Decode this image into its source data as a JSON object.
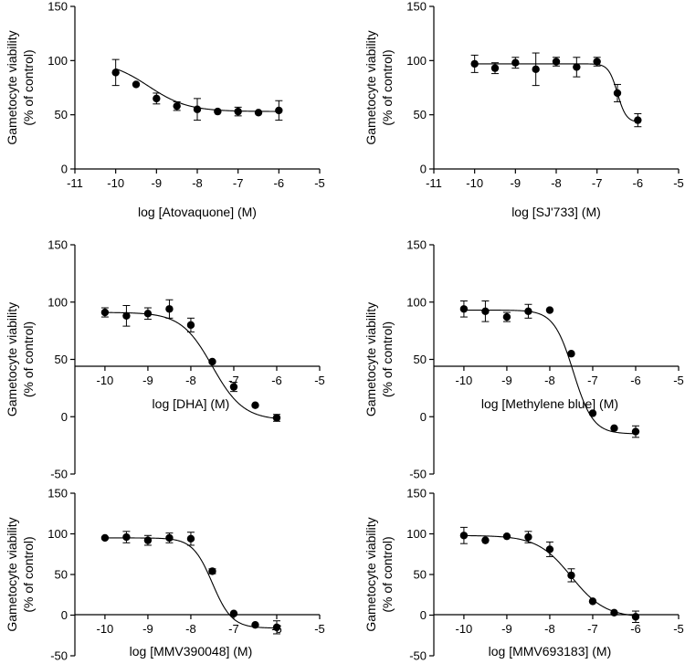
{
  "chart_data": [
    {
      "type": "scatter",
      "xlabel": "log [Atovaquone] (M)",
      "ylabel": [
        "Gametocyte viability",
        "(% of control)"
      ],
      "xlim": [
        -11,
        -5
      ],
      "ylim": [
        0,
        150
      ],
      "xticks": [
        "-11",
        "-10",
        "-9",
        "-8",
        "-7",
        "-6",
        "-5"
      ],
      "yticks": [
        "0",
        "50",
        "100",
        "150"
      ],
      "points": [
        {
          "x": -10,
          "y": 89,
          "err": 12
        },
        {
          "x": -9.5,
          "y": 78,
          "err": 0
        },
        {
          "x": -9,
          "y": 65,
          "err": 5
        },
        {
          "x": -8.5,
          "y": 58,
          "err": 4
        },
        {
          "x": -8,
          "y": 55,
          "err": 10
        },
        {
          "x": -7.5,
          "y": 53,
          "err": 0
        },
        {
          "x": -7,
          "y": 53,
          "err": 4
        },
        {
          "x": -6.5,
          "y": 52,
          "err": 0
        },
        {
          "x": -6,
          "y": 54,
          "err": 9
        }
      ],
      "fit": {
        "bottom": 53,
        "top": 100,
        "logEC50": -9.2,
        "hill": 0.9
      }
    },
    {
      "type": "scatter",
      "xlabel": "log [SJ'733] (M)",
      "ylabel": [
        "Gametocyte viability",
        "(% of control)"
      ],
      "xlim": [
        -11,
        -5
      ],
      "ylim": [
        0,
        150
      ],
      "xticks": [
        "-11",
        "-10",
        "-9",
        "-8",
        "-7",
        "-6",
        "-5"
      ],
      "yticks": [
        "0",
        "50",
        "100",
        "150"
      ],
      "points": [
        {
          "x": -10,
          "y": 97,
          "err": 8
        },
        {
          "x": -9.5,
          "y": 93,
          "err": 5
        },
        {
          "x": -9,
          "y": 98,
          "err": 5
        },
        {
          "x": -8.5,
          "y": 92,
          "err": 15
        },
        {
          "x": -8,
          "y": 99,
          "err": 4
        },
        {
          "x": -7.5,
          "y": 94,
          "err": 9
        },
        {
          "x": -7,
          "y": 99,
          "err": 4
        },
        {
          "x": -6.5,
          "y": 70,
          "err": 8
        },
        {
          "x": -6,
          "y": 45,
          "err": 6
        }
      ],
      "fit": {
        "bottom": 43,
        "top": 97,
        "logEC50": -6.5,
        "hill": 4
      }
    },
    {
      "type": "scatter",
      "xlabel": "log [DHA] (M)",
      "ylabel": [
        "Gametocyte viability",
        "(% of control)"
      ],
      "xlim": [
        -10.7,
        -5
      ],
      "ylim": [
        -50,
        150
      ],
      "xticks": [
        "-10",
        "-9",
        "-8",
        "-7",
        "-6",
        "-5"
      ],
      "yticks": [
        "-50",
        "0",
        "50",
        "100",
        "150"
      ],
      "points": [
        {
          "x": -10,
          "y": 91,
          "err": 4
        },
        {
          "x": -9.5,
          "y": 88,
          "err": 9
        },
        {
          "x": -9,
          "y": 90,
          "err": 5
        },
        {
          "x": -8.5,
          "y": 94,
          "err": 8
        },
        {
          "x": -8,
          "y": 80,
          "err": 6
        },
        {
          "x": -7.5,
          "y": 48,
          "err": 0
        },
        {
          "x": -7,
          "y": 26,
          "err": 4
        },
        {
          "x": -6.5,
          "y": 10,
          "err": 0
        },
        {
          "x": -6,
          "y": -1,
          "err": 3
        }
      ],
      "fit": {
        "bottom": -3,
        "top": 91,
        "logEC50": -7.5,
        "hill": 1.2
      }
    },
    {
      "type": "scatter",
      "xlabel": "log [Methylene blue] (M)",
      "ylabel": [
        "Gametocyte viability",
        "(% of control)"
      ],
      "xlim": [
        -10.7,
        -5
      ],
      "ylim": [
        -50,
        150
      ],
      "xticks": [
        "-10",
        "-9",
        "-8",
        "-7",
        "-6",
        "-5"
      ],
      "yticks": [
        "-50",
        "0",
        "50",
        "100",
        "150"
      ],
      "points": [
        {
          "x": -10,
          "y": 94,
          "err": 7
        },
        {
          "x": -9.5,
          "y": 92,
          "err": 9
        },
        {
          "x": -9,
          "y": 87,
          "err": 4
        },
        {
          "x": -8.5,
          "y": 92,
          "err": 6
        },
        {
          "x": -8,
          "y": 93,
          "err": 0
        },
        {
          "x": -7.5,
          "y": 55,
          "err": 0
        },
        {
          "x": -7,
          "y": 3,
          "err": 0
        },
        {
          "x": -6.5,
          "y": -10,
          "err": 0
        },
        {
          "x": -6,
          "y": -13,
          "err": 5
        }
      ],
      "fit": {
        "bottom": -15,
        "top": 93,
        "logEC50": -7.45,
        "hill": 1.9
      }
    },
    {
      "type": "scatter",
      "xlabel": "log [MMV390048] (M)",
      "ylabel": [
        "Gametocyte viability",
        "(% of control)"
      ],
      "xlim": [
        -10.7,
        -5
      ],
      "ylim": [
        -50,
        150
      ],
      "xticks": [
        "-10",
        "-9",
        "-8",
        "-7",
        "-6",
        "-5"
      ],
      "yticks": [
        "-50",
        "0",
        "50",
        "100",
        "150"
      ],
      "points": [
        {
          "x": -10,
          "y": 95,
          "err": 0
        },
        {
          "x": -9.5,
          "y": 96,
          "err": 7
        },
        {
          "x": -9,
          "y": 92,
          "err": 6
        },
        {
          "x": -8.5,
          "y": 95,
          "err": 6
        },
        {
          "x": -8,
          "y": 94,
          "err": 8
        },
        {
          "x": -7.5,
          "y": 54,
          "err": 3
        },
        {
          "x": -7,
          "y": 2,
          "err": 0
        },
        {
          "x": -6.5,
          "y": -12,
          "err": 0
        },
        {
          "x": -6,
          "y": -15,
          "err": 8
        }
      ],
      "fit": {
        "bottom": -16,
        "top": 95,
        "logEC50": -7.5,
        "hill": 1.9
      }
    },
    {
      "type": "scatter",
      "xlabel": "log [MMV693183] (M)",
      "ylabel": [
        "Gametocyte viability",
        "(% of control)"
      ],
      "xlim": [
        -10.7,
        -5
      ],
      "ylim": [
        -50,
        150
      ],
      "xticks": [
        "-10",
        "-9",
        "-8",
        "-7",
        "-6",
        "-5"
      ],
      "yticks": [
        "-50",
        "0",
        "50",
        "100",
        "150"
      ],
      "points": [
        {
          "x": -10,
          "y": 98,
          "err": 10
        },
        {
          "x": -9.5,
          "y": 92,
          "err": 0
        },
        {
          "x": -9,
          "y": 97,
          "err": 0
        },
        {
          "x": -8.5,
          "y": 96,
          "err": 7
        },
        {
          "x": -8,
          "y": 81,
          "err": 9
        },
        {
          "x": -7.5,
          "y": 49,
          "err": 8
        },
        {
          "x": -7,
          "y": 17,
          "err": 0
        },
        {
          "x": -6.5,
          "y": 3,
          "err": 0
        },
        {
          "x": -6,
          "y": -2,
          "err": 7
        }
      ],
      "fit": {
        "bottom": -3,
        "top": 98,
        "logEC50": -7.5,
        "hill": 1.1
      }
    }
  ]
}
